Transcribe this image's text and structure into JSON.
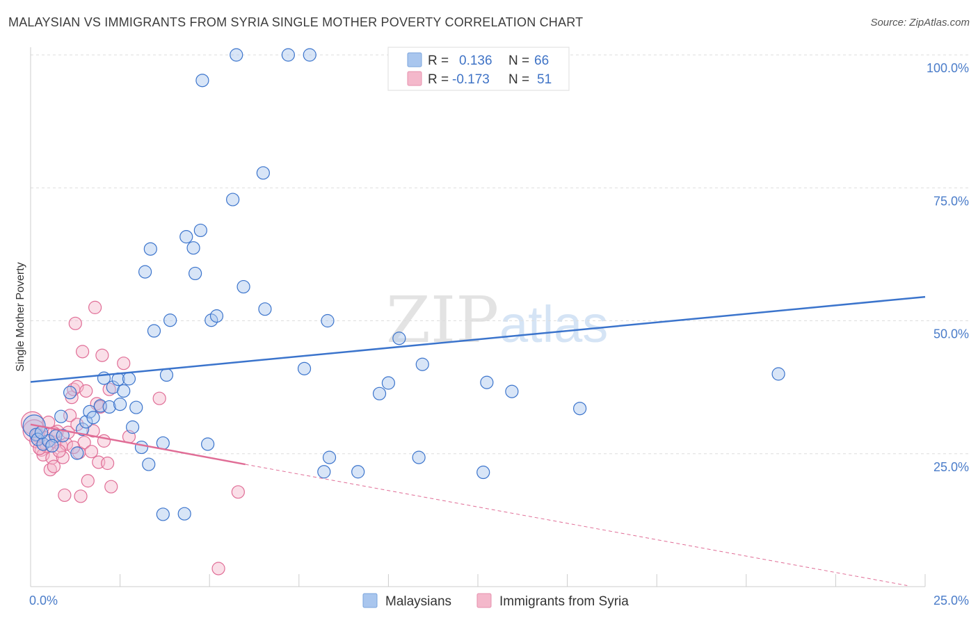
{
  "header": {
    "title": "MALAYSIAN VS IMMIGRANTS FROM SYRIA SINGLE MOTHER POVERTY CORRELATION CHART",
    "source": "Source: ZipAtlas.com"
  },
  "watermark": {
    "zip": "ZIP",
    "atlas": "atlas"
  },
  "legend": {
    "series1": {
      "r_label": "R =",
      "r_value": "0.136",
      "n_label": "N =",
      "n_value": "66"
    },
    "series2": {
      "r_label": "R =",
      "r_value": "-0.173",
      "n_label": "N =",
      "n_value": "51"
    }
  },
  "colors": {
    "blue": "#3b74cc",
    "blue_fill": "#a9c6ee",
    "pink": "#e06d96",
    "pink_fill": "#f4b8cb",
    "grid": "#dddddd"
  },
  "chart_data": {
    "type": "scatter",
    "title": "MALAYSIAN VS IMMIGRANTS FROM SYRIA SINGLE MOTHER POVERTY CORRELATION CHART",
    "xlabel": "",
    "ylabel": "Single Mother Poverty",
    "xlim": [
      0,
      25
    ],
    "ylim": [
      0,
      100
    ],
    "x_tick_labels": [
      "0.0%",
      "25.0%"
    ],
    "y_tick_labels": [
      "25.0%",
      "50.0%",
      "75.0%",
      "100.0%"
    ],
    "y_ticks": [
      25,
      50,
      75,
      100
    ],
    "series": [
      {
        "name": "Malaysians",
        "r": 0.136,
        "n": 66,
        "trend": {
          "x": [
            0,
            25
          ],
          "y": [
            38.5,
            54.5
          ],
          "style": "solid"
        },
        "points": [
          [
            0.1,
            30.2
          ],
          [
            0.15,
            28.6
          ],
          [
            0.2,
            27.7
          ],
          [
            0.35,
            26.8
          ],
          [
            0.5,
            27.4
          ],
          [
            0.7,
            28.3
          ],
          [
            0.9,
            28.4
          ],
          [
            0.85,
            32.0
          ],
          [
            1.1,
            36.5
          ],
          [
            1.3,
            25.1
          ],
          [
            1.45,
            29.6
          ],
          [
            1.55,
            31.0
          ],
          [
            1.65,
            32.9
          ],
          [
            1.75,
            31.8
          ],
          [
            1.95,
            34.0
          ],
          [
            2.05,
            39.2
          ],
          [
            2.2,
            33.8
          ],
          [
            2.3,
            37.5
          ],
          [
            2.45,
            39.0
          ],
          [
            2.5,
            34.3
          ],
          [
            2.6,
            36.8
          ],
          [
            2.75,
            39.1
          ],
          [
            2.85,
            30.0
          ],
          [
            2.95,
            33.7
          ],
          [
            3.1,
            26.2
          ],
          [
            3.2,
            59.2
          ],
          [
            3.3,
            23.0
          ],
          [
            3.35,
            63.5
          ],
          [
            3.45,
            48.1
          ],
          [
            3.7,
            27.0
          ],
          [
            3.7,
            13.6
          ],
          [
            3.8,
            39.8
          ],
          [
            3.9,
            50.1
          ],
          [
            4.3,
            13.7
          ],
          [
            4.35,
            65.8
          ],
          [
            4.55,
            63.7
          ],
          [
            4.6,
            58.9
          ],
          [
            4.75,
            67.0
          ],
          [
            4.8,
            95.2
          ],
          [
            4.95,
            26.8
          ],
          [
            5.05,
            50.1
          ],
          [
            5.2,
            50.9
          ],
          [
            5.65,
            72.8
          ],
          [
            5.75,
            100.0
          ],
          [
            5.95,
            56.4
          ],
          [
            6.5,
            77.8
          ],
          [
            6.55,
            52.2
          ],
          [
            7.2,
            100.0
          ],
          [
            7.8,
            100.0
          ],
          [
            7.65,
            41.0
          ],
          [
            8.2,
            21.6
          ],
          [
            8.3,
            50.0
          ],
          [
            8.35,
            24.3
          ],
          [
            9.15,
            21.6
          ],
          [
            9.75,
            36.3
          ],
          [
            10.0,
            38.3
          ],
          [
            10.3,
            46.7
          ],
          [
            10.85,
            24.3
          ],
          [
            10.95,
            41.8
          ],
          [
            12.65,
            21.5
          ],
          [
            12.75,
            38.4
          ],
          [
            13.45,
            36.7
          ],
          [
            15.35,
            33.5
          ],
          [
            20.9,
            40.0
          ],
          [
            0.3,
            29.0
          ],
          [
            0.6,
            26.5
          ]
        ]
      },
      {
        "name": "Immigrants from Syria",
        "r": -0.173,
        "n": 51,
        "trend": {
          "x": [
            0,
            6.0
          ],
          "y": [
            30.5,
            23.0
          ],
          "style": "solid",
          "dashed_extension": {
            "x": [
              6.0,
              24.5
            ],
            "y": [
              23.0,
              0.2
            ]
          }
        },
        "points": [
          [
            0.05,
            30.8
          ],
          [
            0.1,
            29.3
          ],
          [
            0.15,
            27.3
          ],
          [
            0.2,
            28.6
          ],
          [
            0.3,
            25.7
          ],
          [
            0.35,
            24.8
          ],
          [
            0.45,
            26.4
          ],
          [
            0.5,
            30.9
          ],
          [
            0.55,
            22.0
          ],
          [
            0.6,
            24.2
          ],
          [
            0.65,
            22.6
          ],
          [
            0.7,
            27.2
          ],
          [
            0.75,
            29.2
          ],
          [
            0.85,
            26.5
          ],
          [
            0.9,
            24.3
          ],
          [
            0.95,
            17.2
          ],
          [
            1.0,
            26.8
          ],
          [
            1.05,
            29.0
          ],
          [
            1.1,
            32.2
          ],
          [
            1.15,
            35.6
          ],
          [
            1.2,
            37.1
          ],
          [
            1.25,
            49.5
          ],
          [
            1.3,
            37.6
          ],
          [
            1.35,
            25.2
          ],
          [
            1.4,
            17.0
          ],
          [
            1.45,
            44.2
          ],
          [
            1.5,
            27.1
          ],
          [
            1.55,
            36.8
          ],
          [
            1.6,
            19.9
          ],
          [
            1.7,
            25.4
          ],
          [
            1.8,
            52.5
          ],
          [
            1.85,
            34.4
          ],
          [
            1.9,
            23.4
          ],
          [
            1.95,
            33.8
          ],
          [
            2.0,
            43.5
          ],
          [
            2.05,
            27.4
          ],
          [
            2.15,
            23.2
          ],
          [
            2.2,
            37.1
          ],
          [
            2.25,
            18.8
          ],
          [
            2.6,
            42.0
          ],
          [
            2.75,
            28.2
          ],
          [
            3.6,
            35.4
          ],
          [
            5.25,
            3.4
          ],
          [
            5.8,
            17.8
          ],
          [
            0.4,
            28.0
          ],
          [
            0.8,
            25.5
          ],
          [
            1.3,
            30.5
          ],
          [
            0.25,
            26.0
          ],
          [
            1.75,
            29.3
          ],
          [
            0.65,
            28.9
          ],
          [
            1.2,
            26.2
          ]
        ]
      }
    ],
    "legend_position": "top-center"
  }
}
